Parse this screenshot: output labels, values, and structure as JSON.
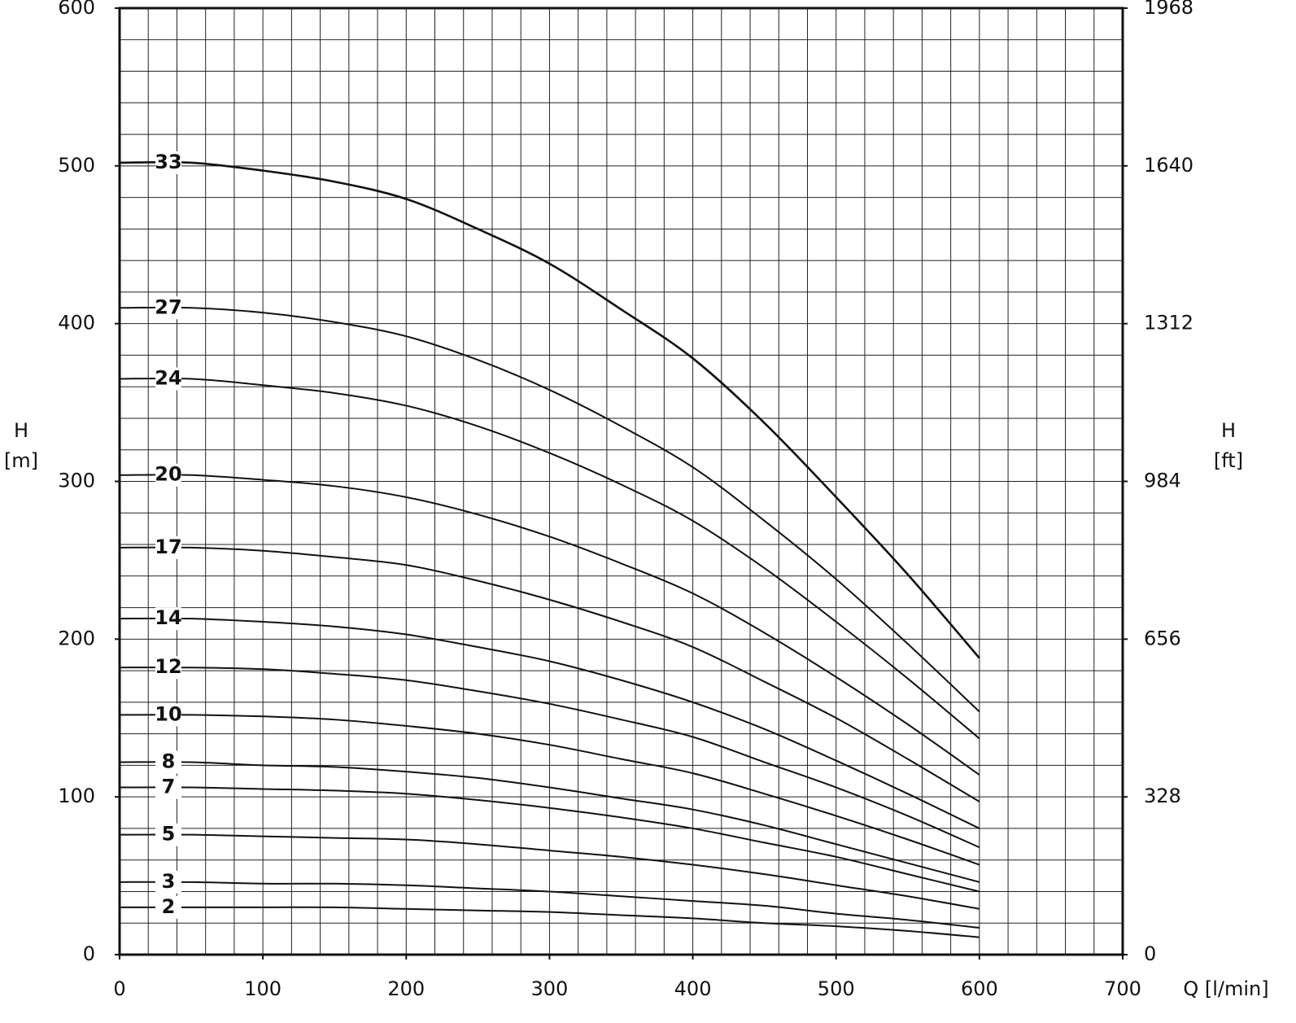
{
  "chart_data": {
    "type": "line",
    "xlabel": "Q [l/min]",
    "ylabel": [
      "H",
      "[m]"
    ],
    "y2label": [
      "H",
      "[ft]"
    ],
    "x": [
      0,
      50,
      100,
      150,
      200,
      250,
      300,
      350,
      400,
      450,
      500,
      550,
      600
    ],
    "xlim": [
      0,
      700
    ],
    "xticks": [
      0,
      100,
      200,
      300,
      400,
      500,
      600,
      700
    ],
    "ylim": [
      0,
      600
    ],
    "yticks": [
      0,
      100,
      200,
      300,
      400,
      500,
      600
    ],
    "y2lim": [
      0,
      1968
    ],
    "y2ticks": [
      0,
      328,
      656,
      984,
      1312,
      1640,
      1968
    ],
    "grid": true,
    "grid_step": [
      20,
      20
    ],
    "series": [
      {
        "name": "33",
        "color": "#111111",
        "values": [
          502,
          502,
          497,
          490,
          479,
          460,
          438,
          409,
          378,
          337,
          290,
          241,
          188
        ]
      },
      {
        "name": "27",
        "color": "#111111",
        "values": [
          410,
          410,
          407,
          401,
          392,
          377,
          358,
          335,
          309,
          275,
          238,
          197,
          154
        ]
      },
      {
        "name": "24",
        "color": "#111111",
        "values": [
          365,
          365,
          361,
          356,
          348,
          335,
          318,
          298,
          275,
          245,
          211,
          175,
          137
        ]
      },
      {
        "name": "20",
        "color": "#111111",
        "values": [
          304,
          304,
          301,
          297,
          290,
          279,
          265,
          248,
          229,
          204,
          176,
          146,
          114
        ]
      },
      {
        "name": "17",
        "color": "#111111",
        "values": [
          258,
          258,
          256,
          252,
          247,
          237,
          225,
          211,
          195,
          173,
          150,
          124,
          97
        ]
      },
      {
        "name": "14",
        "color": "#111111",
        "values": [
          213,
          213,
          211,
          208,
          203,
          195,
          186,
          174,
          160,
          143,
          123,
          102,
          80
        ]
      },
      {
        "name": "12",
        "color": "#111111",
        "values": [
          182,
          182,
          181,
          178,
          174,
          167,
          159,
          149,
          138,
          122,
          106,
          88,
          68
        ]
      },
      {
        "name": "10",
        "color": "#111111",
        "values": [
          152,
          152,
          151,
          149,
          145,
          140,
          133,
          124,
          115,
          102,
          88,
          73,
          57
        ]
      },
      {
        "name": "8",
        "color": "#111111",
        "values": [
          122,
          122,
          120,
          119,
          116,
          112,
          106,
          99,
          92,
          82,
          70,
          58,
          46
        ]
      },
      {
        "name": "7",
        "color": "#111111",
        "values": [
          106,
          106,
          105,
          104,
          102,
          98,
          93,
          87,
          80,
          71,
          62,
          51,
          40
        ]
      },
      {
        "name": "5",
        "color": "#111111",
        "values": [
          76,
          76,
          75,
          74,
          73,
          70,
          66,
          62,
          57,
          51,
          44,
          37,
          29
        ]
      },
      {
        "name": "3",
        "color": "#111111",
        "values": [
          46,
          46,
          45,
          45,
          44,
          42,
          40,
          37,
          34,
          31,
          26,
          22,
          17
        ]
      },
      {
        "name": "2",
        "color": "#111111",
        "values": [
          30,
          30,
          30,
          30,
          29,
          28,
          27,
          25,
          23,
          20,
          18,
          15,
          11
        ]
      }
    ]
  }
}
